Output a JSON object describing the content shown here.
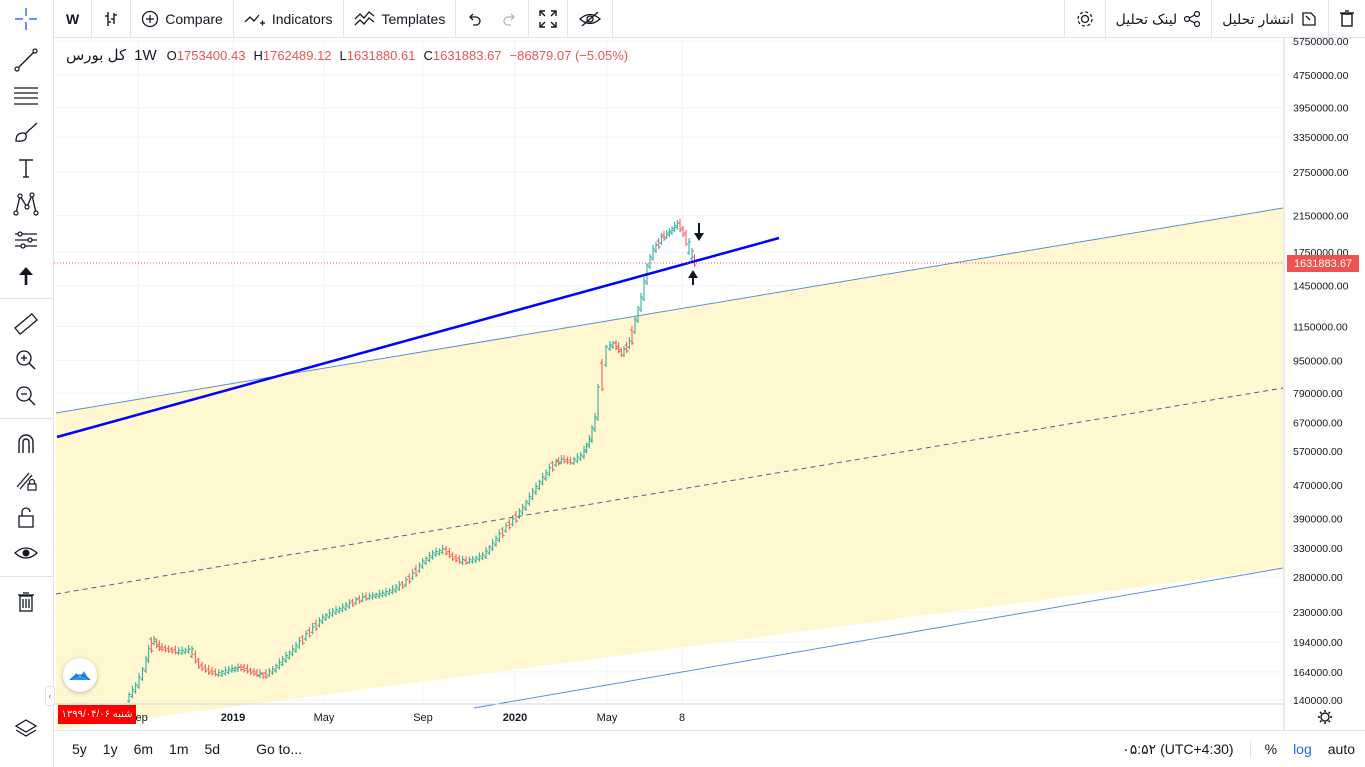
{
  "toolbar": {
    "symbol_button": "W",
    "compare_label": "Compare",
    "indicators_label": "Indicators",
    "templates_label": "Templates",
    "share_analysis_label": "انتشار تحلیل",
    "link_analysis_label": "لینک تحلیل"
  },
  "legend": {
    "symbol": "کل بورس",
    "timeframe": "1W",
    "open_key": "O",
    "open": "1753400.43",
    "high_key": "H",
    "high": "1762489.12",
    "low_key": "L",
    "low": "1631880.61",
    "close_key": "C",
    "close": "1631883.67",
    "change": "−86879.07 (−5.05%)"
  },
  "price_axis": {
    "ticks": [
      "5750000.00",
      "4750000.00",
      "3950000.00",
      "3350000.00",
      "2750000.00",
      "2150000.00",
      "1750000.00",
      "1450000.00",
      "1150000.00",
      "950000.00",
      "790000.00",
      "670000.00",
      "570000.00",
      "470000.00",
      "390000.00",
      "330000.00",
      "280000.00",
      "230000.00",
      "194000.00",
      "164000.00",
      "140000.00"
    ],
    "current_price": "1631883.67",
    "scale": "log"
  },
  "time_axis": {
    "labels": [
      "Sep",
      "2019",
      "May",
      "Sep",
      "2020",
      "May",
      "8"
    ],
    "date_badge": "شنبه ۱۳۹۹/۰۴/۰۶"
  },
  "bottom_bar": {
    "ranges": [
      "5y",
      "1y",
      "6m",
      "1m",
      "5d"
    ],
    "goto_label": "Go to...",
    "clock": "۰۵:۵۲ (UTC+4:30)",
    "percent_label": "%",
    "log_label": "log",
    "auto_label": "auto"
  },
  "colors": {
    "up": "#26a69a",
    "down": "#ef5350",
    "trend_line": "#0000ff",
    "channel_line": "#5b8fd6",
    "channel_fill": "#fff7d0",
    "midline": "#6a4fa0",
    "accent_blue": "#2962ff"
  },
  "icons": {
    "left_toolbar": [
      "crosshair-icon",
      "trendline-icon",
      "fib-icon",
      "brush-icon",
      "text-icon",
      "pattern-icon",
      "prediction-icon",
      "arrow-up-icon",
      "ruler-icon",
      "zoom-in-icon",
      "zoom-out-icon",
      "magnet-icon",
      "lock-drawing-icon",
      "unlock-icon",
      "eye-icon",
      "trash-icon",
      "layers-icon"
    ]
  }
}
